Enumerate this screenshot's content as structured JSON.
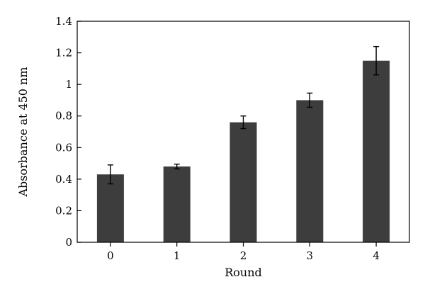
{
  "chart_data": {
    "type": "bar",
    "categories": [
      "0",
      "1",
      "2",
      "3",
      "4"
    ],
    "values": [
      0.43,
      0.48,
      0.76,
      0.9,
      1.15
    ],
    "errors": [
      0.06,
      0.015,
      0.04,
      0.045,
      0.09
    ],
    "xlabel": "Round",
    "ylabel": "Absorbance at 450 nm",
    "ylim": [
      0,
      1.4
    ],
    "yticks": [
      0,
      0.2,
      0.4,
      0.6,
      0.8,
      1,
      1.2,
      1.4
    ],
    "ytick_labels": [
      "0",
      "0.2",
      "0.4",
      "0.6",
      "0.8",
      "1",
      "1.2",
      "1.4"
    ],
    "grid": false,
    "legend": "none",
    "bar_color": "#3d3d3d"
  }
}
